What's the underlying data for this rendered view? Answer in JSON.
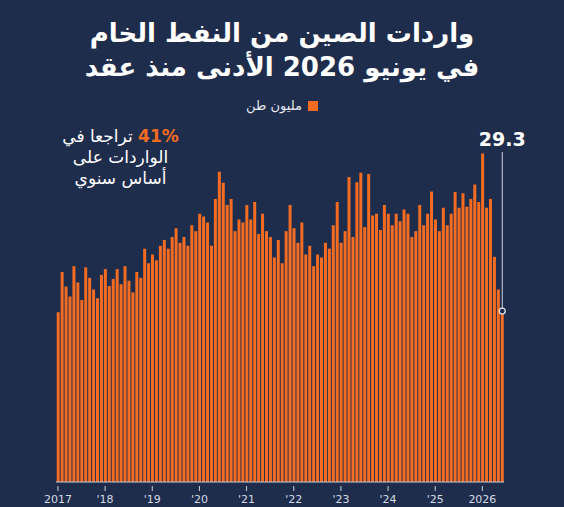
{
  "chart_data": {
    "type": "bar",
    "title": "واردات الصين من النفط الخام في يونيو 2026 الأدنى منذ عقد",
    "categories": [
      "2017",
      null,
      null,
      null,
      null,
      null,
      null,
      null,
      null,
      null,
      null,
      null,
      "'18",
      null,
      null,
      null,
      null,
      null,
      null,
      null,
      null,
      null,
      null,
      null,
      "'19",
      null,
      null,
      null,
      null,
      null,
      null,
      null,
      null,
      null,
      null,
      null,
      "'20",
      null,
      null,
      null,
      null,
      null,
      null,
      null,
      null,
      null,
      null,
      null,
      "'21",
      null,
      null,
      null,
      null,
      null,
      null,
      null,
      null,
      null,
      null,
      null,
      "'22",
      null,
      null,
      null,
      null,
      null,
      null,
      null,
      null,
      null,
      null,
      null,
      "'23",
      null,
      null,
      null,
      null,
      null,
      null,
      null,
      null,
      null,
      null,
      null,
      "'24",
      null,
      null,
      null,
      null,
      null,
      null,
      null,
      null,
      null,
      null,
      null,
      "'25",
      null,
      null,
      null,
      null,
      null,
      null,
      null,
      null,
      null,
      null,
      null,
      "2026",
      null,
      null,
      null,
      null,
      null
    ],
    "series": [
      {
        "name": "مليون طن",
        "color": "#f36c21",
        "values": [
          29.1,
          36.0,
          33.5,
          31.8,
          37.0,
          34.2,
          31.2,
          36.8,
          35.0,
          33.0,
          31.5,
          35.5,
          36.5,
          33.6,
          34.8,
          36.5,
          33.9,
          37.0,
          34.5,
          32.5,
          36.0,
          35.0,
          40.0,
          37.5,
          39.0,
          38.0,
          40.5,
          41.5,
          40.0,
          42.0,
          43.5,
          41.0,
          42.0,
          40.5,
          44.0,
          43.0,
          46.0,
          45.5,
          44.5,
          40.5,
          48.5,
          53.2,
          51.3,
          47.5,
          48.5,
          43.0,
          45.0,
          44.5,
          47.5,
          45.0,
          48.0,
          42.5,
          46.0,
          43.0,
          42.0,
          38.5,
          41.5,
          37.5,
          43.0,
          47.5,
          43.5,
          41.0,
          44.5,
          39.0,
          40.5,
          37.0,
          39.0,
          38.5,
          41.0,
          40.0,
          44.0,
          48.0,
          41.0,
          43.0,
          52.3,
          42.0,
          51.4,
          53.0,
          43.7,
          52.8,
          45.7,
          46.0,
          43.2,
          47.5,
          46.0,
          44.0,
          46.0,
          44.7,
          46.7,
          46.0,
          42.0,
          43.0,
          47.5,
          44.0,
          46.0,
          49.8,
          45.0,
          43.0,
          47.0,
          44.0,
          46.0,
          49.7,
          47.0,
          49.5,
          47.2,
          48.5,
          51.0,
          48.0,
          56.3,
          47.0,
          48.5,
          38.6,
          33.0,
          29.3
        ]
      }
    ],
    "ylim": [
      0,
      60
    ],
    "tick_labels": "x",
    "grid": false,
    "legend": "top",
    "annotation": "41% تراجعا في الواردات على أساس سنوي",
    "callout": "29.3"
  }
}
